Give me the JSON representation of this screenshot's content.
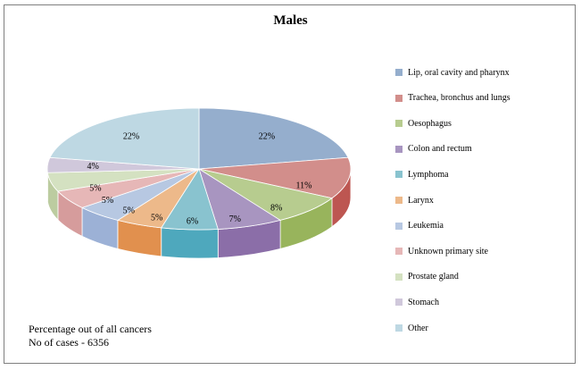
{
  "chart_data": {
    "type": "pie",
    "title": "Males",
    "categories": [
      "Lip, oral cavity and pharynx",
      "Trachea, bronchus and lungs",
      "Oesophagus",
      "Colon and rectum",
      "Lymphoma",
      "Larynx",
      "Leukemia",
      "Unknown primary site",
      "Prostate gland",
      "Stomach",
      "Other"
    ],
    "values": [
      22,
      11,
      8,
      7,
      6,
      5,
      5,
      5,
      5,
      4,
      22
    ],
    "data_labels": [
      "22%",
      "11%",
      "8%",
      "7%",
      "6%",
      "5%",
      "5%",
      "5%",
      "5%",
      "4%",
      "22%"
    ],
    "colors": [
      "#95aecd",
      "#d28e8b",
      "#b7cc8f",
      "#a895c0",
      "#89c3cf",
      "#edb98a",
      "#b7c8e2",
      "#e6b7b7",
      "#d4e1c1",
      "#d0c8db",
      "#bed8e3"
    ],
    "side_colors": [
      "#7b95b6",
      "#bd5651",
      "#98b45c",
      "#8b6ea8",
      "#4ea8bd",
      "#e1904e",
      "#9cb1d6",
      "#d69c9c",
      "#bccca0",
      "#b8aac9",
      "#a6c6d3"
    ],
    "legend_position": "right"
  },
  "footnote": {
    "line1": "Percentage out of all cancers",
    "line2": "No of cases - 6356"
  }
}
